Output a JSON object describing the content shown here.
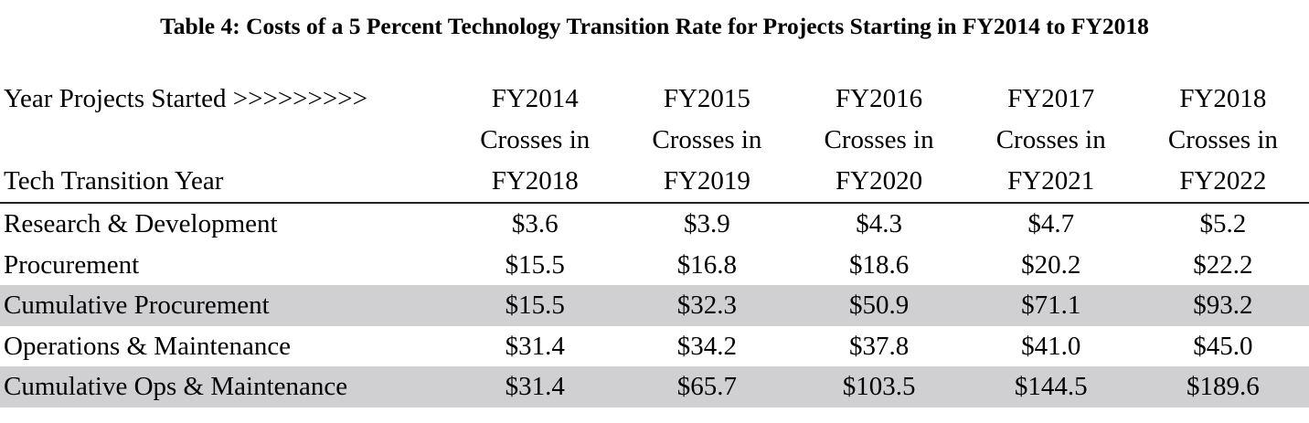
{
  "title": "Table 4: Costs of a 5 Percent Technology Transition Rate for Projects Starting in FY2014 to FY2018",
  "header": {
    "row1_label": "Year Projects Started  >>>>>>>>>",
    "row3_label": "Tech Transition Year",
    "columns": [
      {
        "start": "FY2014",
        "crosses": "Crosses in",
        "transition": "FY2018"
      },
      {
        "start": "FY2015",
        "crosses": "Crosses in",
        "transition": "FY2019"
      },
      {
        "start": "FY2016",
        "crosses": "Crosses in",
        "transition": "FY2020"
      },
      {
        "start": "FY2017",
        "crosses": "Crosses in",
        "transition": "FY2021"
      },
      {
        "start": "FY2018",
        "crosses": "Crosses in",
        "transition": "FY2022"
      }
    ]
  },
  "rows": [
    {
      "label": "Research & Development",
      "values": [
        "$3.6",
        "$3.9",
        "$4.3",
        "$4.7",
        "$5.2"
      ]
    },
    {
      "label": "Procurement",
      "values": [
        "$15.5",
        "$16.8",
        "$18.6",
        "$20.2",
        "$22.2"
      ]
    },
    {
      "label": "Cumulative Procurement",
      "values": [
        "$15.5",
        "$32.3",
        "$50.9",
        "$71.1",
        "$93.2"
      ]
    },
    {
      "label": "Operations & Maintenance",
      "values": [
        "$31.4",
        "$34.2",
        "$37.8",
        "$41.0",
        "$45.0"
      ]
    },
    {
      "label": "Cumulative Ops & Maintenance",
      "values": [
        "$31.4",
        "$65.7",
        "$103.5",
        "$144.5",
        "$189.6"
      ]
    }
  ]
}
